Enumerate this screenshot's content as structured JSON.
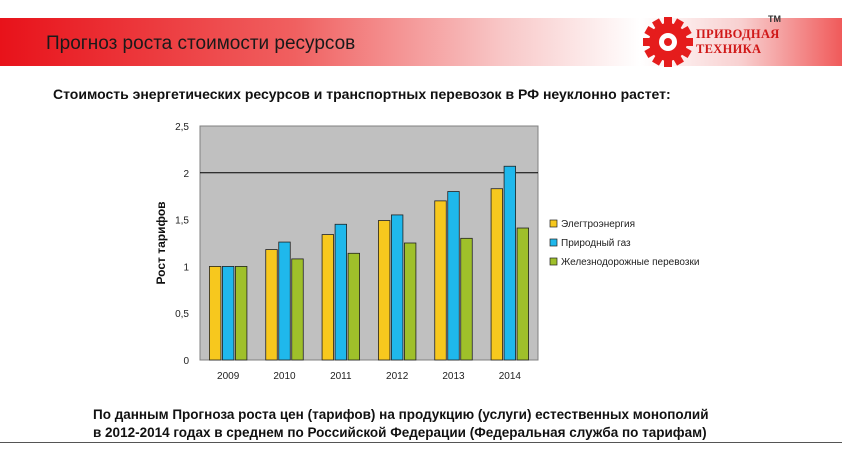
{
  "header": {
    "title": "Прогноз роста стоимости ресурсов",
    "logo_line1": "ПРИВОДНАЯ",
    "logo_line2": "ТЕХНИКА",
    "logo_tm": "TM",
    "banner_color": "#e8121a"
  },
  "subtitle": "Стоимость энергетических ресурсов и транспортных перевозок в РФ неуклонно растет:",
  "chart_data": {
    "type": "bar",
    "categories": [
      "2009",
      "2010",
      "2011",
      "2012",
      "2013",
      "2014"
    ],
    "series": [
      {
        "name": "Элегтроэнергия",
        "color": "#f7c81e",
        "values": [
          1.0,
          1.18,
          1.34,
          1.49,
          1.7,
          1.83
        ]
      },
      {
        "name": "Природный газ",
        "color": "#1fb8ec",
        "values": [
          1.0,
          1.26,
          1.45,
          1.55,
          1.8,
          2.07
        ]
      },
      {
        "name": "Железнодорожные перевозки",
        "color": "#9fc02a",
        "values": [
          1.0,
          1.08,
          1.14,
          1.25,
          1.3,
          1.41
        ]
      }
    ],
    "ylabel": "Рост тарифов",
    "xlabel": "",
    "ylim": [
      0,
      2.5
    ],
    "yticks": [
      "0",
      "0,5",
      "1",
      "1,5",
      "2",
      "2,5"
    ],
    "reference_line": 2,
    "plot_background": "#c0c0c0",
    "legend_position": "right"
  },
  "footnote": {
    "line1": "По данным Прогноза роста цен (тарифов) на продукцию (услуги) естественных монополий",
    "line2": "в 2012-2014 годах в среднем по Российской Федерации   (Федеральная служба по тарифам)"
  }
}
